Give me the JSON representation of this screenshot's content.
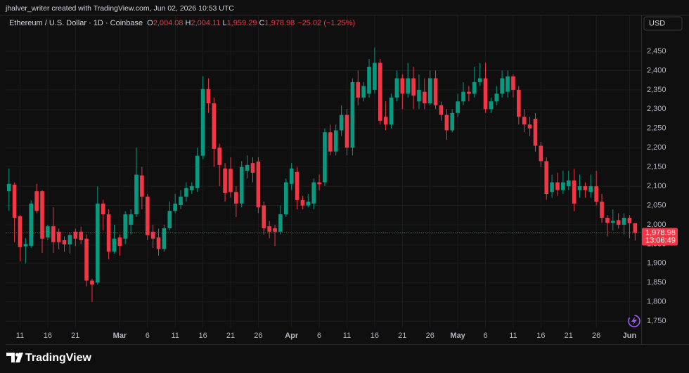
{
  "header": {
    "text": "jhalver_writer created with TradingView.com, Jun 02, 2026 10:53 UTC"
  },
  "chart_data": {
    "type": "candlestick",
    "title": "Ethereum / U.S. Dollar · 1D · Coinbase",
    "ohlc_legend": [
      {
        "key": "O",
        "value": "2,004.08"
      },
      {
        "key": "H",
        "value": "2,004.11"
      },
      {
        "key": "L",
        "value": "1,959.29"
      },
      {
        "key": "C",
        "value": "1,978.98"
      }
    ],
    "change": "−25.02 (−1.25%)",
    "currency": "USD",
    "up_color": "#089981",
    "down_color": "#f23645",
    "open": [
      2087,
      2104,
      2022,
      1944,
      1945,
      2087,
      2087,
      1967,
      1996,
      1982,
      1960,
      1949,
      1982,
      1982,
      1964,
      1855,
      1850,
      2055,
      2027,
      1930,
      1967,
      1964,
      2000,
      2027,
      2128,
      2073,
      1982,
      1967,
      1937,
      1991,
      2036,
      2051,
      2073,
      2090,
      2095,
      2179,
      2352,
      2315,
      2200,
      2146,
      2145,
      2085,
      2055,
      2140,
      2160,
      2164,
      2050,
      1996,
      1991,
      1982,
      2027,
      2106,
      2137,
      2064,
      2050,
      2055,
      2110,
      2110,
      2240,
      2190,
      2245,
      2285,
      2200,
      2370,
      2330,
      2340,
      2350,
      2420,
      2280,
      2260,
      2330,
      2380,
      2340,
      2380,
      2320,
      2345,
      2315,
      2380,
      2310,
      2285,
      2245,
      2290,
      2320,
      2345,
      2340,
      2370,
      2380,
      2300,
      2320,
      2340,
      2345,
      2385,
      2350,
      2280,
      2260,
      2275,
      2205,
      2165,
      2085,
      2110,
      2090,
      2100,
      2115,
      2090,
      2100,
      2085,
      2100,
      2060,
      2018,
      2005,
      2012,
      2000,
      2018,
      2004.08
    ],
    "high": [
      2146,
      2110,
      2025,
      1965,
      2063,
      2106,
      2090,
      2000,
      2045,
      1990,
      1970,
      1980,
      1990,
      1995,
      1975,
      1860,
      2100,
      2065,
      2040,
      2000,
      1975,
      2035,
      2040,
      2200,
      2150,
      2080,
      2000,
      1990,
      2000,
      2060,
      2080,
      2090,
      2110,
      2110,
      2200,
      2385,
      2380,
      2330,
      2210,
      2160,
      2175,
      2100,
      2165,
      2180,
      2175,
      2175,
      2060,
      2010,
      2000,
      2050,
      2120,
      2160,
      2150,
      2075,
      2080,
      2120,
      2130,
      2250,
      2260,
      2260,
      2310,
      2300,
      2380,
      2400,
      2370,
      2430,
      2460,
      2430,
      2320,
      2340,
      2400,
      2390,
      2420,
      2410,
      2390,
      2380,
      2400,
      2400,
      2320,
      2300,
      2300,
      2340,
      2370,
      2360,
      2410,
      2420,
      2420,
      2330,
      2360,
      2400,
      2400,
      2390,
      2360,
      2300,
      2280,
      2290,
      2215,
      2175,
      2130,
      2135,
      2140,
      2140,
      2145,
      2130,
      2110,
      2130,
      2140,
      2080,
      2025,
      2040,
      2030,
      2030,
      2025,
      2004.11
    ],
    "low": [
      2036,
      1955,
      1905,
      1900,
      1940,
      2030,
      1927,
      1960,
      1927,
      1936,
      1930,
      1925,
      1945,
      1950,
      1840,
      1800,
      1845,
      1985,
      1910,
      1925,
      1920,
      1950,
      1975,
      2020,
      2040,
      1960,
      1940,
      1920,
      1930,
      1985,
      2030,
      2040,
      2060,
      2080,
      2085,
      2170,
      2290,
      2150,
      2100,
      2060,
      2070,
      2020,
      2045,
      2120,
      2110,
      2030,
      1975,
      1965,
      1945,
      1975,
      2020,
      2090,
      2040,
      2040,
      2045,
      2040,
      2090,
      2100,
      2180,
      2180,
      2230,
      2180,
      2180,
      2310,
      2320,
      2330,
      2340,
      2260,
      2245,
      2250,
      2320,
      2300,
      2330,
      2300,
      2300,
      2300,
      2310,
      2300,
      2270,
      2220,
      2240,
      2280,
      2310,
      2320,
      2330,
      2360,
      2290,
      2290,
      2310,
      2330,
      2330,
      2330,
      2260,
      2240,
      2230,
      2190,
      2150,
      2065,
      2070,
      2075,
      2080,
      2090,
      2035,
      2070,
      2070,
      2070,
      2050,
      2005,
      1970,
      1985,
      1990,
      1975,
      1965,
      1959.29
    ],
    "close": [
      2106,
      2018,
      1942,
      1950,
      2055,
      2036,
      1964,
      1996,
      1955,
      1955,
      1949,
      1973,
      1964,
      1960,
      1855,
      1845,
      2055,
      2027,
      1930,
      1964,
      1945,
      2027,
      2027,
      2130,
      2073,
      1973,
      1964,
      1937,
      1991,
      2036,
      2055,
      2073,
      2095,
      2100,
      2179,
      2352,
      2315,
      2197,
      2155,
      2082,
      2085,
      2055,
      2150,
      2155,
      2135,
      2045,
      1991,
      1982,
      1982,
      2027,
      2110,
      2146,
      2064,
      2050,
      2060,
      2110,
      2105,
      2240,
      2190,
      2245,
      2285,
      2200,
      2370,
      2330,
      2360,
      2410,
      2420,
      2270,
      2260,
      2330,
      2380,
      2340,
      2380,
      2335,
      2350,
      2315,
      2380,
      2310,
      2285,
      2245,
      2290,
      2320,
      2345,
      2340,
      2370,
      2380,
      2300,
      2320,
      2340,
      2380,
      2385,
      2350,
      2280,
      2260,
      2250,
      2205,
      2165,
      2080,
      2110,
      2090,
      2110,
      2115,
      2055,
      2100,
      2090,
      2100,
      2060,
      2018,
      2005,
      2010,
      2000,
      2018,
      2004,
      1978.98
    ],
    "ylim": [
      1732,
      2543
    ],
    "yticks": [
      {
        "value": 1750,
        "label": "1,750"
      },
      {
        "value": 1800,
        "label": "1,800"
      },
      {
        "value": 1850,
        "label": "1,850"
      },
      {
        "value": 1900,
        "label": "1,900"
      },
      {
        "value": 1950,
        "label": "1,950"
      },
      {
        "value": 2000,
        "label": "2,000"
      },
      {
        "value": 2050,
        "label": "2,050"
      },
      {
        "value": 2100,
        "label": "2,100"
      },
      {
        "value": 2150,
        "label": "2,150"
      },
      {
        "value": 2200,
        "label": "2,200"
      },
      {
        "value": 2250,
        "label": "2,250"
      },
      {
        "value": 2300,
        "label": "2,300"
      },
      {
        "value": 2350,
        "label": "2,350"
      },
      {
        "value": 2400,
        "label": "2,400"
      },
      {
        "value": 2450,
        "label": "2,450"
      }
    ],
    "xlim": [
      -0.6,
      114.1
    ],
    "xticks": [
      {
        "value": 2,
        "label": "11"
      },
      {
        "value": 7,
        "label": "16"
      },
      {
        "value": 12,
        "label": "21"
      },
      {
        "value": 20,
        "label": "Mar"
      },
      {
        "value": 25,
        "label": "6"
      },
      {
        "value": 30,
        "label": "11"
      },
      {
        "value": 35,
        "label": "16"
      },
      {
        "value": 40,
        "label": "21"
      },
      {
        "value": 45,
        "label": "26"
      },
      {
        "value": 51,
        "label": "Apr"
      },
      {
        "value": 56,
        "label": "6"
      },
      {
        "value": 61,
        "label": "11"
      },
      {
        "value": 66,
        "label": "16"
      },
      {
        "value": 71,
        "label": "21"
      },
      {
        "value": 76,
        "label": "26"
      },
      {
        "value": 81,
        "label": "May"
      },
      {
        "value": 86,
        "label": "6"
      },
      {
        "value": 91,
        "label": "11"
      },
      {
        "value": 96,
        "label": "16"
      },
      {
        "value": 101,
        "label": "21"
      },
      {
        "value": 106,
        "label": "26"
      },
      {
        "value": 112,
        "label": "Jun"
      }
    ],
    "grid": true,
    "last_price": {
      "value": 1978.98,
      "label": "1,978.98"
    },
    "countdown": "13:06:49"
  },
  "footer": {
    "brand": "TradingView"
  }
}
